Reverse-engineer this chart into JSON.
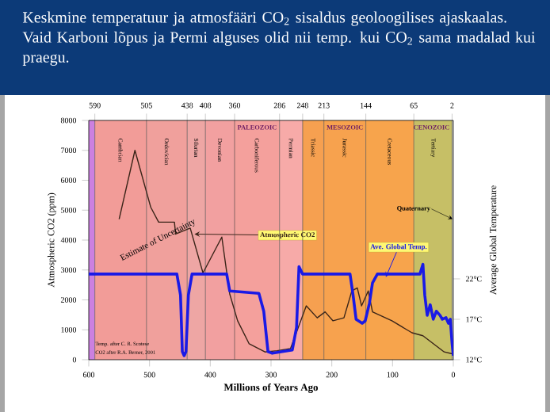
{
  "chart_data": {
    "type": "line",
    "title": "Keskmine temperatuur ja atmosfääri CO$_{2}$ sisaldus geoloogilises ajaskaalas. Vaid Karboni lõpus ja Permi alguses olid nii temp. kui CO$_{2}$ sama madalad kui praegu.",
    "xlabel": "Millions of Years Ago",
    "ylabel": "Atmospheric CO2 (ppm)",
    "y2label": "Average Global Temperature",
    "xlim": [
      600,
      0
    ],
    "xticks": [
      600,
      500,
      400,
      300,
      200,
      100,
      0
    ],
    "ylim": [
      0,
      8000
    ],
    "yticks": [
      0,
      1000,
      2000,
      3000,
      4000,
      5000,
      6000,
      7000,
      8000
    ],
    "y2lim": [
      12,
      41.6
    ],
    "y2ticks": [
      {
        "value": 12,
        "label": "12°C"
      },
      {
        "value": 17,
        "label": "17°C"
      },
      {
        "value": 22,
        "label": "22°C"
      }
    ],
    "x2lim": [
      600,
      0
    ],
    "x2ticks": [
      590,
      505,
      438,
      408,
      360,
      286,
      248,
      213,
      144,
      65,
      2
    ],
    "marker": "none",
    "series": [
      {
        "name": "Atmospheric CO2",
        "color": "#3a2418",
        "x": [
          550,
          524,
          498,
          485,
          459,
          457,
          433,
          412,
          381,
          368,
          355,
          336,
          310,
          290,
          268,
          242,
          224,
          211,
          198,
          180,
          167,
          158,
          151,
          140,
          133,
          101,
          68,
          50,
          15,
          2
        ],
        "values": [
          4700,
          7000,
          5100,
          4600,
          4600,
          4200,
          4400,
          2900,
          4100,
          2200,
          1300,
          530,
          260,
          300,
          370,
          1800,
          1400,
          1600,
          1300,
          1400,
          2300,
          2400,
          1800,
          2300,
          1600,
          1300,
          900,
          800,
          260,
          200
        ]
      },
      {
        "name": "Ave. Global Temp.",
        "color": "#1a1ae6",
        "axis": "y2",
        "x": [
          600,
          455,
          449,
          446,
          443,
          440,
          436,
          430,
          373,
          368,
          320,
          312,
          305,
          298,
          265,
          258,
          254,
          248,
          170,
          165,
          160,
          150,
          145,
          138,
          133,
          125,
          55,
          50,
          47,
          43,
          38,
          33,
          28,
          22,
          18,
          12,
          8,
          5,
          2,
          0
        ],
        "values": [
          22.6,
          22.6,
          20,
          13,
          12.5,
          13,
          20,
          22.6,
          22.6,
          20.5,
          20.2,
          18,
          13,
          12.8,
          13.2,
          16,
          23.5,
          22.6,
          22.6,
          20,
          17,
          16.5,
          16.8,
          19,
          21.5,
          22.6,
          22.6,
          23.8,
          20,
          17.5,
          18.8,
          17,
          18,
          17.5,
          17,
          17.2,
          16.5,
          17,
          14,
          12.5
        ]
      }
    ],
    "bands": [
      {
        "axis": "x",
        "from": 600,
        "to": 590,
        "color": "#cc80e0"
      },
      {
        "axis": "x",
        "from": 590,
        "to": 505,
        "label": "Cambrian",
        "color": "#f29c98"
      },
      {
        "axis": "x",
        "from": 505,
        "to": 438,
        "label": "Ordovician",
        "color": "#f0a09c"
      },
      {
        "axis": "x",
        "from": 438,
        "to": 408,
        "label": "Silurian",
        "color": "#eea6a4"
      },
      {
        "axis": "x",
        "from": 408,
        "to": 360,
        "label": "Devonian",
        "color": "#f2a0a0"
      },
      {
        "axis": "x",
        "from": 360,
        "to": 286,
        "label": "Carboniferous",
        "color": "#f4a09c"
      },
      {
        "axis": "x",
        "from": 286,
        "to": 248,
        "label": "Permian",
        "color": "#f7aaa8"
      },
      {
        "axis": "x",
        "from": 248,
        "to": 213,
        "label": "Triassic",
        "color": "#f6a050"
      },
      {
        "axis": "x",
        "from": 213,
        "to": 144,
        "label": "Jurassic",
        "color": "#f7a24e"
      },
      {
        "axis": "x",
        "from": 144,
        "to": 65,
        "label": "Cretaceous",
        "color": "#f7a44c"
      },
      {
        "axis": "x",
        "from": 65,
        "to": 2,
        "label": "Tertiary",
        "color": "#c6bf66"
      }
    ],
    "grid": "x",
    "annotations": [
      "Estimate of Uncertainty",
      "Temp. after C. R. Scotese",
      "CO2 after R.A. Berner, 2001",
      "PALEOZOIC",
      "MESOZOIC",
      "CENOZOIC",
      {
        "text": "Quaternary",
        "x": 1,
        "y": 4700
      }
    ]
  }
}
